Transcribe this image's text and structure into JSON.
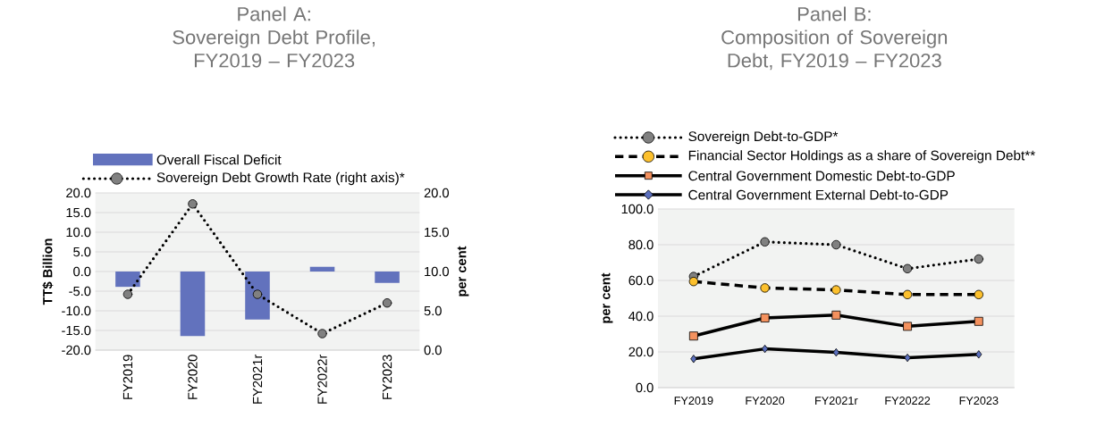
{
  "chart_data": [
    {
      "type": "bar",
      "title": "Panel A:",
      "subtitle": "Sovereign Debt Profile, FY2019 – FY2023",
      "ylabel": "TT$ Billion",
      "y2label": "per cent",
      "categories": [
        "FY2019",
        "FY2020",
        "FY2021r",
        "FY2022r",
        "FY2023"
      ],
      "series": [
        {
          "name": "Overall Fiscal Deficit",
          "type": "bar",
          "color": "#6272bd",
          "values": [
            -3.9,
            -16.4,
            -12.2,
            1.2,
            -2.9
          ]
        },
        {
          "name": "Sovereign Debt Growth Rate (right axis)*",
          "type": "line",
          "axis": "y2",
          "color": "#808080",
          "marker": "circle",
          "line_style": "dotted",
          "values": [
            7.1,
            18.6,
            7.1,
            2.1,
            6.0
          ]
        }
      ],
      "ylim": [
        -20,
        20
      ],
      "yticks": [
        {
          "value": -20,
          "label": "-20.0"
        },
        {
          "value": -15,
          "label": "-15.0"
        },
        {
          "value": -10,
          "label": "-10.0"
        },
        {
          "value": -5,
          "label": "-5.0"
        },
        {
          "value": 0,
          "label": "0.0"
        },
        {
          "value": 5,
          "label": "5.0"
        },
        {
          "value": 10,
          "label": "10.0"
        },
        {
          "value": 15,
          "label": "15.0"
        },
        {
          "value": 20,
          "label": "20.0"
        }
      ],
      "y2lim": [
        0,
        20
      ],
      "y2ticks": [
        {
          "value": 0,
          "label": "0.0"
        },
        {
          "value": 5,
          "label": "5.0"
        },
        {
          "value": 10,
          "label": "10.0"
        },
        {
          "value": 15,
          "label": "15.0"
        },
        {
          "value": 20,
          "label": "20.0"
        }
      ],
      "grid": "y",
      "legend": "top"
    },
    {
      "type": "line",
      "title": "Panel B:",
      "subtitle": "Composition of Sovereign Debt, FY2019 – FY2023",
      "ylabel": "per cent",
      "categories": [
        "FY2019",
        "FY2020",
        "FY2021r",
        "FY20222",
        "FY2023"
      ],
      "series": [
        {
          "name": "Sovereign Debt-to-GDP*",
          "color": "#808080",
          "marker": "circle",
          "line_style": "dotted",
          "values": [
            62.2,
            81.6,
            80.0,
            66.6,
            72.0
          ]
        },
        {
          "name": "Financial Sector Holdings as a share of Sovereign Debt**",
          "color": "#fcc02d",
          "marker": "circle",
          "line_style": "dashed",
          "values": [
            59.4,
            55.8,
            54.7,
            52.1,
            52.1
          ]
        },
        {
          "name": "Central Government Domestic Debt-to-GDP",
          "color": "#f4915e",
          "marker": "square",
          "line_style": "solid",
          "values": [
            28.9,
            39.0,
            40.6,
            34.3,
            37.1
          ]
        },
        {
          "name": "Central Government External Debt-to-GDP",
          "color": "#5b6fbd",
          "marker": "diamond",
          "line_style": "solid",
          "values": [
            16.1,
            21.7,
            19.7,
            16.7,
            18.6
          ]
        }
      ],
      "ylim": [
        0,
        100
      ],
      "yticks": [
        {
          "value": 0,
          "label": "0.0"
        },
        {
          "value": 20,
          "label": "20.0"
        },
        {
          "value": 40,
          "label": "40.0"
        },
        {
          "value": 60,
          "label": "60.0"
        },
        {
          "value": 80,
          "label": "80.0"
        },
        {
          "value": 100,
          "label": "100.0"
        }
      ],
      "grid": "y",
      "legend": "top"
    }
  ]
}
